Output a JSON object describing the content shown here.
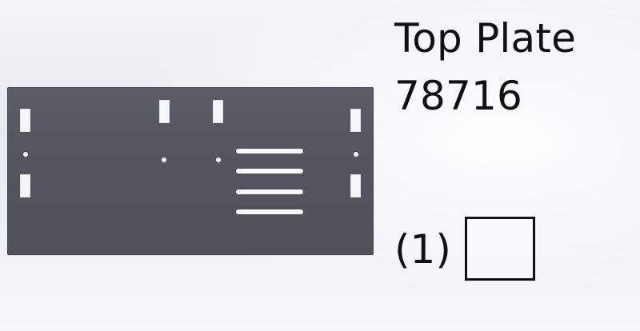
{
  "part": {
    "name": "Top Plate",
    "number": "78716"
  },
  "quantity": {
    "label": "(1)"
  },
  "colors": {
    "plate": "#52545e",
    "cutouts": "#f7f8fa",
    "text": "#111111",
    "background": "#eef0f4"
  }
}
